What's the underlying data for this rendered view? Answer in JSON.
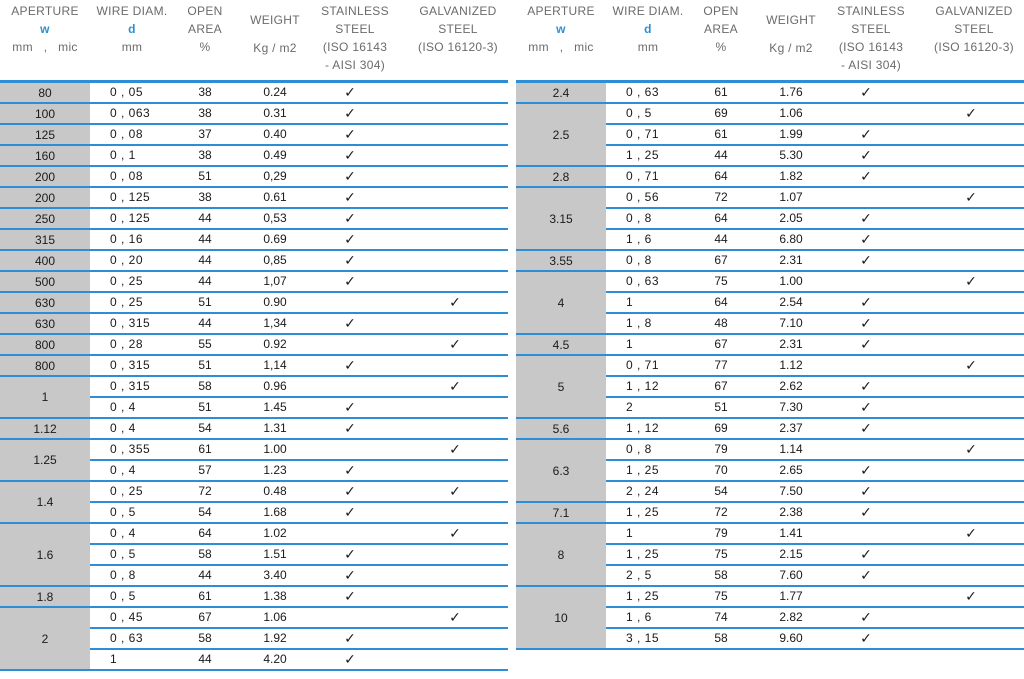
{
  "header": {
    "aperture": "APERTURE",
    "w": "w",
    "units_mm": "mm",
    "units_sep": ",",
    "units_mic": "mic",
    "wire": "WIRE DIAM.",
    "d": "d",
    "wire_unit": "mm",
    "open1": "OPEN",
    "open2": "AREA",
    "open_unit": "%",
    "weight": "WEIGHT",
    "weight_unit": "Kg / m2",
    "ss1": "STAINLESS",
    "ss2": "STEEL",
    "ss3": "(ISO 16143",
    "ss4": "- AISI 304)",
    "gv1": "GALVANIZED",
    "gv2": "STEEL",
    "gv3": "(ISO 16120-3)"
  },
  "check_symbol": "✓",
  "left": [
    {
      "ap": "80",
      "rows": [
        [
          "0 , 05",
          "38",
          "0.24",
          1,
          0
        ]
      ]
    },
    {
      "ap": "100",
      "rows": [
        [
          "0 , 063",
          "38",
          "0.31",
          1,
          0
        ]
      ]
    },
    {
      "ap": "125",
      "rows": [
        [
          "0 , 08",
          "37",
          "0.40",
          1,
          0
        ]
      ]
    },
    {
      "ap": "160",
      "rows": [
        [
          "0 , 1",
          "38",
          "0.49",
          1,
          0
        ]
      ]
    },
    {
      "ap": "200",
      "rows": [
        [
          "0 , 08",
          "51",
          "0,29",
          1,
          0
        ]
      ]
    },
    {
      "ap": "200",
      "rows": [
        [
          "0 , 125",
          "38",
          "0.61",
          1,
          0
        ]
      ]
    },
    {
      "ap": "250",
      "rows": [
        [
          "0 , 125",
          "44",
          "0,53",
          1,
          0
        ]
      ]
    },
    {
      "ap": "315",
      "rows": [
        [
          "0 , 16",
          "44",
          "0.69",
          1,
          0
        ]
      ]
    },
    {
      "ap": "400",
      "rows": [
        [
          "0 , 20",
          "44",
          "0,85",
          1,
          0
        ]
      ]
    },
    {
      "ap": "500",
      "rows": [
        [
          "0 , 25",
          "44",
          "1,07",
          1,
          0
        ]
      ]
    },
    {
      "ap": "630",
      "rows": [
        [
          "0 , 25",
          "51",
          "0.90",
          0,
          1
        ]
      ]
    },
    {
      "ap": "630",
      "rows": [
        [
          "0 , 315",
          "44",
          "1,34",
          1,
          0
        ]
      ]
    },
    {
      "ap": "800",
      "rows": [
        [
          "0 , 28",
          "55",
          "0.92",
          0,
          1
        ]
      ]
    },
    {
      "ap": "800",
      "rows": [
        [
          "0 , 315",
          "51",
          "1,14",
          1,
          0
        ]
      ]
    },
    {
      "ap": "1",
      "rows": [
        [
          "0 , 315",
          "58",
          "0.96",
          0,
          1
        ],
        [
          "0 , 4",
          "51",
          "1.45",
          1,
          0
        ]
      ]
    },
    {
      "ap": "1.12",
      "rows": [
        [
          "0 , 4",
          "54",
          "1.31",
          1,
          0
        ]
      ]
    },
    {
      "ap": "1.25",
      "rows": [
        [
          "0 , 355",
          "61",
          "1.00",
          0,
          1
        ],
        [
          "0 , 4",
          "57",
          "1.23",
          1,
          0
        ]
      ]
    },
    {
      "ap": "1.4",
      "rows": [
        [
          "0 , 25",
          "72",
          "0.48",
          1,
          1
        ],
        [
          "0 , 5",
          "54",
          "1.68",
          1,
          0
        ]
      ]
    },
    {
      "ap": "1.6",
      "rows": [
        [
          "0 , 4",
          "64",
          "1.02",
          0,
          1
        ],
        [
          "0 , 5",
          "58",
          "1.51",
          1,
          0
        ],
        [
          "0 , 8",
          "44",
          "3.40",
          1,
          0
        ]
      ]
    },
    {
      "ap": "1.8",
      "rows": [
        [
          "0 , 5",
          "61",
          "1.38",
          1,
          0
        ]
      ]
    },
    {
      "ap": "2",
      "rows": [
        [
          "0 , 45",
          "67",
          "1.06",
          0,
          1
        ],
        [
          "0 , 63",
          "58",
          "1.92",
          1,
          0
        ],
        [
          "1",
          "44",
          "4.20",
          1,
          0
        ]
      ]
    }
  ],
  "right": [
    {
      "ap": "2.4",
      "rows": [
        [
          "0 , 63",
          "61",
          "1.76",
          1,
          0
        ]
      ]
    },
    {
      "ap": "2.5",
      "rows": [
        [
          "0 , 5",
          "69",
          "1.06",
          0,
          1
        ],
        [
          "0 , 71",
          "61",
          "1.99",
          1,
          0
        ],
        [
          "1 , 25",
          "44",
          "5.30",
          1,
          0
        ]
      ]
    },
    {
      "ap": "2.8",
      "rows": [
        [
          "0 , 71",
          "64",
          "1.82",
          1,
          0
        ]
      ]
    },
    {
      "ap": "3.15",
      "rows": [
        [
          "0 , 56",
          "72",
          "1.07",
          0,
          1
        ],
        [
          "0 , 8",
          "64",
          "2.05",
          1,
          0
        ],
        [
          "1 , 6",
          "44",
          "6.80",
          1,
          0
        ]
      ]
    },
    {
      "ap": "3.55",
      "rows": [
        [
          "0 , 8",
          "67",
          "2.31",
          1,
          0
        ]
      ]
    },
    {
      "ap": "4",
      "rows": [
        [
          "0 , 63",
          "75",
          "1.00",
          0,
          1
        ],
        [
          "1",
          "64",
          "2.54",
          1,
          0
        ],
        [
          "1 , 8",
          "48",
          "7.10",
          1,
          0
        ]
      ]
    },
    {
      "ap": "4.5",
      "rows": [
        [
          "1",
          "67",
          "2.31",
          1,
          0
        ]
      ]
    },
    {
      "ap": "5",
      "rows": [
        [
          "0 , 71",
          "77",
          "1.12",
          0,
          1
        ],
        [
          "1 , 12",
          "67",
          "2.62",
          1,
          0
        ],
        [
          "2",
          "51",
          "7.30",
          1,
          0
        ]
      ]
    },
    {
      "ap": "5.6",
      "rows": [
        [
          "1 , 12",
          "69",
          "2.37",
          1,
          0
        ]
      ]
    },
    {
      "ap": "6.3",
      "rows": [
        [
          "0 , 8",
          "79",
          "1.14",
          0,
          1
        ],
        [
          "1 , 25",
          "70",
          "2.65",
          1,
          0
        ],
        [
          "2 , 24",
          "54",
          "7.50",
          1,
          0
        ]
      ]
    },
    {
      "ap": "7.1",
      "rows": [
        [
          "1 , 25",
          "72",
          "2.38",
          1,
          0
        ]
      ]
    },
    {
      "ap": "8",
      "rows": [
        [
          "1",
          "79",
          "1.41",
          0,
          1
        ],
        [
          "1 , 25",
          "75",
          "2.15",
          1,
          0
        ],
        [
          "2 , 5",
          "58",
          "7.60",
          1,
          0
        ]
      ]
    },
    {
      "ap": "10",
      "rows": [
        [
          "1 , 25",
          "75",
          "1.77",
          0,
          1
        ],
        [
          "1 , 6",
          "74",
          "2.82",
          1,
          0
        ],
        [
          "3 , 15",
          "58",
          "9.60",
          1,
          0
        ]
      ]
    }
  ]
}
